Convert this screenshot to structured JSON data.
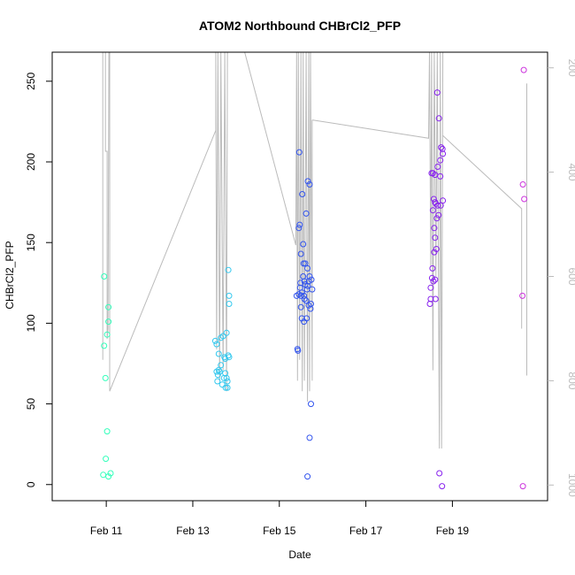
{
  "chart_data": {
    "type": "scatter",
    "title": "ATOM2 Northbound CHBrCl2_PFP",
    "xlabel": "Date",
    "ylabel": "CHBrCl2_PFP",
    "x_unit": "days (February)",
    "xlim": [
      9.75,
      21.2
    ],
    "ylim": [
      -10,
      268
    ],
    "x_ticks": [
      {
        "value": 11,
        "label": "Feb 11"
      },
      {
        "value": 13,
        "label": "Feb 13"
      },
      {
        "value": 15,
        "label": "Feb 15"
      },
      {
        "value": 17,
        "label": "Feb 17"
      },
      {
        "value": 19,
        "label": "Feb 19"
      }
    ],
    "y_ticks": [
      0,
      50,
      100,
      150,
      200,
      250
    ],
    "y2": {
      "description": "secondary axis (pressure-like), inverted",
      "lim": [
        1030,
        170
      ],
      "ticks": [
        200,
        400,
        600,
        800,
        1000
      ],
      "color": "#bbbbbb"
    },
    "grid": false,
    "legend": "none",
    "series": [
      {
        "color": "#33ffbb",
        "points": [
          [
            10.95,
            129
          ],
          [
            10.95,
            86
          ],
          [
            10.98,
            66
          ],
          [
            11.02,
            93
          ],
          [
            11.05,
            101
          ],
          [
            11.05,
            110
          ],
          [
            11.02,
            33
          ],
          [
            10.99,
            16
          ],
          [
            10.93,
            6
          ],
          [
            11.05,
            5
          ],
          [
            11.1,
            7
          ]
        ]
      },
      {
        "color": "#33c8ee",
        "points": [
          [
            13.52,
            89
          ],
          [
            13.55,
            70
          ],
          [
            13.57,
            64
          ],
          [
            13.6,
            81
          ],
          [
            13.6,
            71
          ],
          [
            13.65,
            74
          ],
          [
            13.65,
            91
          ],
          [
            13.68,
            62
          ],
          [
            13.72,
            66
          ],
          [
            13.75,
            78
          ],
          [
            13.73,
            79
          ],
          [
            13.75,
            69
          ],
          [
            13.76,
            60
          ],
          [
            13.78,
            94
          ],
          [
            13.8,
            64
          ],
          [
            13.82,
            80
          ],
          [
            13.82,
            133
          ],
          [
            13.84,
            117
          ],
          [
            13.84,
            112
          ],
          [
            13.84,
            79
          ],
          [
            13.8,
            60
          ],
          [
            13.78,
            66
          ],
          [
            13.7,
            92
          ],
          [
            13.62,
            70
          ],
          [
            13.55,
            87
          ],
          [
            13.58,
            68
          ]
        ]
      },
      {
        "color": "#3355ee",
        "points": [
          [
            15.4,
            117
          ],
          [
            15.42,
            84
          ],
          [
            15.43,
            83
          ],
          [
            15.45,
            159
          ],
          [
            15.46,
            206
          ],
          [
            15.47,
            161
          ],
          [
            15.48,
            122
          ],
          [
            15.49,
            125
          ],
          [
            15.5,
            143
          ],
          [
            15.5,
            117
          ],
          [
            15.5,
            110
          ],
          [
            15.52,
            103
          ],
          [
            15.53,
            180
          ],
          [
            15.55,
            149
          ],
          [
            15.55,
            129
          ],
          [
            15.56,
            137
          ],
          [
            15.57,
            117
          ],
          [
            15.57,
            101
          ],
          [
            15.58,
            126
          ],
          [
            15.6,
            124
          ],
          [
            15.6,
            137
          ],
          [
            15.62,
            114
          ],
          [
            15.62,
            168
          ],
          [
            15.63,
            103
          ],
          [
            15.64,
            121
          ],
          [
            15.65,
            134
          ],
          [
            15.65,
            5
          ],
          [
            15.66,
            188
          ],
          [
            15.68,
            111
          ],
          [
            15.68,
            126
          ],
          [
            15.7,
            186
          ],
          [
            15.7,
            129
          ],
          [
            15.7,
            29
          ],
          [
            15.72,
            109
          ],
          [
            15.73,
            112
          ],
          [
            15.73,
            50
          ],
          [
            15.74,
            127
          ],
          [
            15.76,
            121
          ],
          [
            15.45,
            118
          ],
          [
            15.52,
            119
          ],
          [
            15.58,
            115
          ],
          [
            15.66,
            123
          ]
        ]
      },
      {
        "color": "#8822ee",
        "points": [
          [
            18.48,
            112
          ],
          [
            18.5,
            122
          ],
          [
            18.5,
            115
          ],
          [
            18.52,
            193
          ],
          [
            18.53,
            128
          ],
          [
            18.54,
            134
          ],
          [
            18.55,
            193
          ],
          [
            18.56,
            126
          ],
          [
            18.57,
            177
          ],
          [
            18.58,
            144
          ],
          [
            18.58,
            159
          ],
          [
            18.6,
            175
          ],
          [
            18.6,
            192
          ],
          [
            18.6,
            153
          ],
          [
            18.61,
            115
          ],
          [
            18.62,
            174
          ],
          [
            18.63,
            146
          ],
          [
            18.64,
            165
          ],
          [
            18.65,
            243
          ],
          [
            18.66,
            173
          ],
          [
            18.68,
            167
          ],
          [
            18.69,
            227
          ],
          [
            18.7,
            7
          ],
          [
            18.72,
            201
          ],
          [
            18.72,
            191
          ],
          [
            18.73,
            173
          ],
          [
            18.74,
            209
          ],
          [
            18.76,
            -1
          ],
          [
            18.77,
            208
          ],
          [
            18.78,
            205
          ],
          [
            18.78,
            176
          ],
          [
            18.66,
            197
          ],
          [
            18.6,
            127
          ],
          [
            18.55,
            170
          ]
        ]
      },
      {
        "color": "#cc33dd",
        "points": [
          [
            20.65,
            257
          ],
          [
            20.63,
            186
          ],
          [
            20.66,
            177
          ],
          [
            20.62,
            117
          ],
          [
            20.63,
            -1
          ]
        ]
      }
    ],
    "flight_track": {
      "color": "#bbbbbb",
      "axis": "y2",
      "segments": [
        [
          [
            10.92,
            170
          ],
          [
            10.92,
            760
          ]
        ],
        [
          [
            10.98,
            170
          ],
          [
            10.98,
            360
          ],
          [
            11.02,
            360
          ],
          [
            11.02,
            720
          ],
          [
            11.04,
            700
          ],
          [
            11.06,
            170
          ],
          [
            11.08,
            170
          ],
          [
            11.08,
            820
          ]
        ],
        [
          [
            11.08,
            820
          ],
          [
            13.53,
            320
          ],
          [
            13.53,
            170
          ],
          [
            13.55,
            740
          ],
          [
            13.58,
            170
          ],
          [
            13.62,
            800
          ],
          [
            13.65,
            170
          ],
          [
            13.7,
            780
          ],
          [
            13.74,
            170
          ],
          [
            13.78,
            820
          ],
          [
            13.8,
            170
          ]
        ],
        [
          [
            14.2,
            170
          ],
          [
            15.38,
            540
          ],
          [
            15.4,
            170
          ],
          [
            15.42,
            800
          ],
          [
            15.44,
            170
          ],
          [
            15.47,
            760
          ],
          [
            15.5,
            170
          ],
          [
            15.53,
            820
          ],
          [
            15.55,
            170
          ],
          [
            15.58,
            800
          ],
          [
            15.62,
            170
          ],
          [
            15.65,
            840
          ],
          [
            15.68,
            170
          ],
          [
            15.7,
            820
          ],
          [
            15.72,
            170
          ],
          [
            15.76,
            800
          ],
          [
            15.76,
            300
          ]
        ],
        [
          [
            15.76,
            300
          ],
          [
            18.45,
            335
          ],
          [
            18.47,
            170
          ],
          [
            18.5,
            580
          ],
          [
            18.52,
            170
          ],
          [
            18.55,
            780
          ],
          [
            18.58,
            170
          ],
          [
            18.62,
            600
          ],
          [
            18.65,
            170
          ],
          [
            18.7,
            930
          ],
          [
            18.72,
            170
          ],
          [
            18.75,
            930
          ],
          [
            18.78,
            170
          ]
        ],
        [
          [
            18.78,
            330
          ],
          [
            20.6,
            470
          ],
          [
            20.6,
            700
          ]
        ],
        [
          [
            20.72,
            230
          ],
          [
            20.72,
            790
          ]
        ]
      ]
    }
  }
}
